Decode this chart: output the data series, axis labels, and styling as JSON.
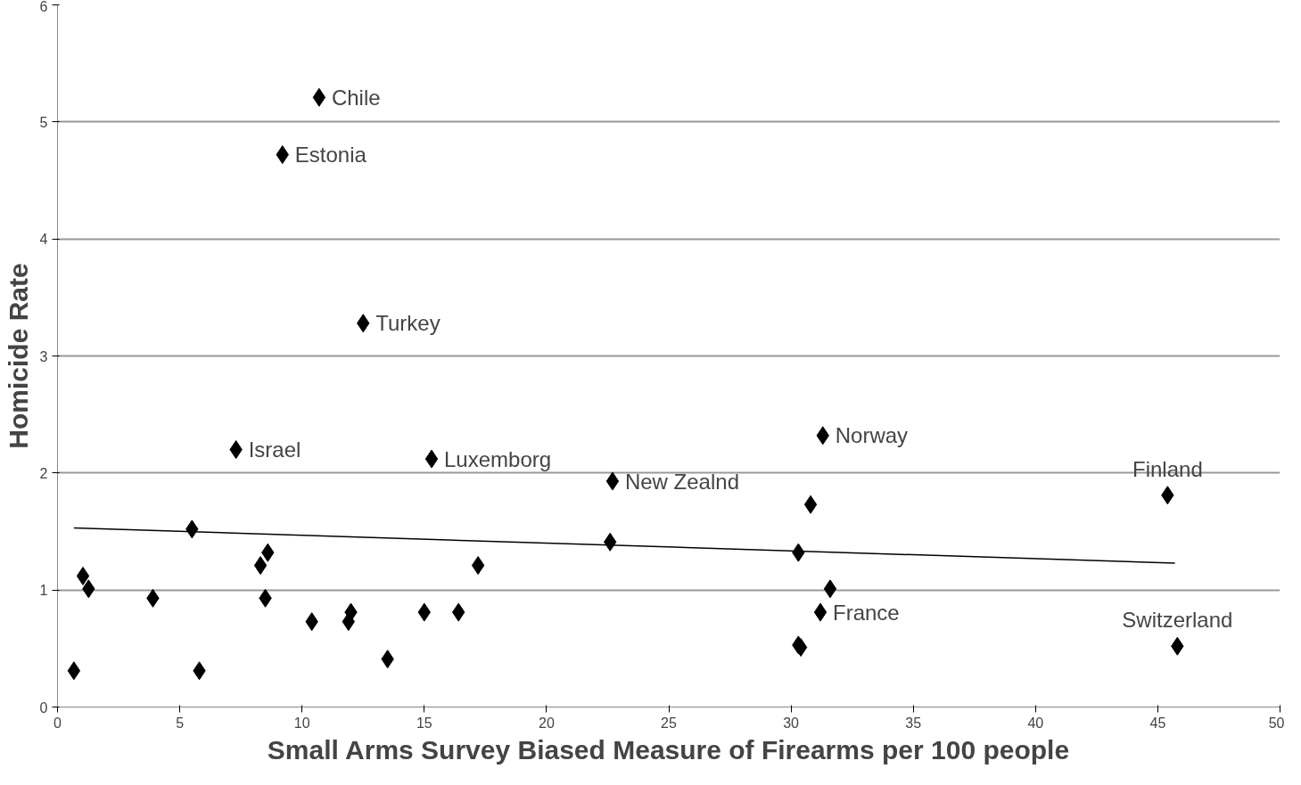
{
  "chart_data": {
    "type": "scatter",
    "xlabel": "Small Arms Survey Biased Measure of Firearms per 100 people",
    "ylabel": "Homicide Rate",
    "xlim": [
      0,
      50
    ],
    "ylim": [
      0,
      6
    ],
    "xticks": [
      0,
      5,
      10,
      15,
      20,
      25,
      30,
      35,
      40,
      45,
      50
    ],
    "yticks": [
      0,
      1,
      2,
      3,
      4,
      5,
      6
    ],
    "grid": "y",
    "series": [
      {
        "marker": "diamond",
        "color": "#000000",
        "x": [
          0.67,
          1.04,
          1.27,
          3.9,
          5.5,
          5.8,
          7.3,
          8.3,
          8.6,
          8.5,
          9.2,
          10.7,
          10.4,
          11.9,
          12.0,
          12.5,
          13.5,
          15.0,
          15.3,
          16.4,
          17.2,
          22.6,
          22.7,
          30.3,
          30.3,
          30.4,
          30.8,
          31.3,
          31.2,
          31.6,
          45.4,
          45.8
        ],
        "values": [
          0.31,
          1.12,
          1.01,
          0.93,
          1.52,
          0.31,
          2.2,
          1.21,
          1.32,
          0.93,
          4.72,
          5.21,
          0.73,
          0.73,
          0.81,
          3.28,
          0.41,
          0.81,
          2.12,
          0.81,
          1.21,
          1.41,
          1.93,
          1.32,
          0.53,
          0.51,
          1.73,
          2.32,
          0.81,
          1.01,
          1.81,
          0.52
        ]
      },
      {
        "type": "line",
        "color": "#000000",
        "x": [
          0.67,
          45.7
        ],
        "values": [
          1.53,
          1.23
        ]
      }
    ],
    "annotations": [
      {
        "text": "Chile",
        "x": 10.7,
        "y": 5.21
      },
      {
        "text": "Estonia",
        "x": 9.2,
        "y": 4.72
      },
      {
        "text": "Turkey",
        "x": 12.5,
        "y": 3.28
      },
      {
        "text": "Israel",
        "x": 7.3,
        "y": 2.2
      },
      {
        "text": "Luxemborg",
        "x": 15.3,
        "y": 2.12
      },
      {
        "text": "New Zealnd",
        "x": 22.7,
        "y": 1.93
      },
      {
        "text": "Norway",
        "x": 31.3,
        "y": 2.32
      },
      {
        "text": "France",
        "x": 31.2,
        "y": 0.81
      },
      {
        "text": "Finland",
        "x": 45.4,
        "y": 1.81
      },
      {
        "text": "Switzerland",
        "x": 45.8,
        "y": 0.52
      }
    ]
  }
}
